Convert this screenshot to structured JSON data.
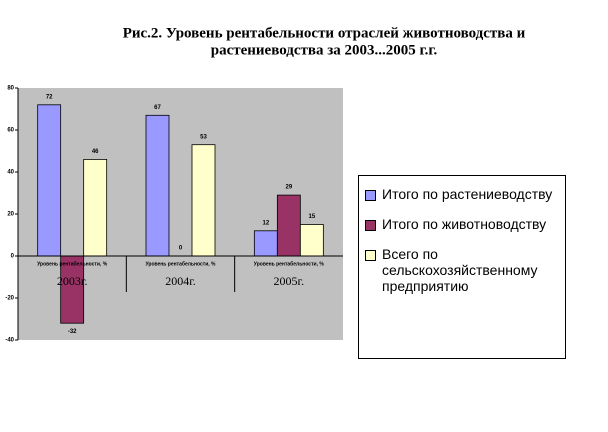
{
  "chart_data": {
    "type": "bar",
    "title": [
      "Рис.2. Уровень рентабельности отраслей животноводства и",
      "растениеводства за 2003...2005 г.г."
    ],
    "categories": [
      "Уровень рентабельности, %",
      "Уровень рентабельности, %",
      "Уровень рентабельности, %"
    ],
    "groups": [
      "2003г.",
      "2004г.",
      "2005г."
    ],
    "series": [
      {
        "name": "Итого по растениеводству",
        "color": "#9999ff",
        "values": [
          72,
          67,
          12
        ]
      },
      {
        "name": "Итого по животноводству",
        "color": "#993366",
        "values": [
          -32,
          0,
          29
        ]
      },
      {
        "name": "Всего по сельскохозяйственному предприятию",
        "color": "#ffffcc",
        "values": [
          46,
          53,
          15
        ]
      }
    ],
    "ylim": [
      -40,
      80
    ],
    "yticks": [
      -40,
      -20,
      0,
      20,
      40,
      60,
      80
    ],
    "grid": false,
    "legend": "right"
  }
}
